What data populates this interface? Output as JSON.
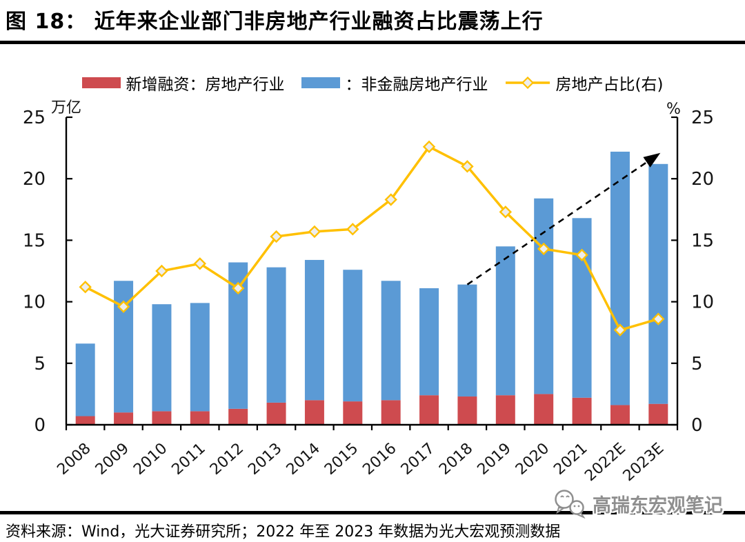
{
  "title": "图 18：  近年来企业部门非房地产行业融资占比震荡上行",
  "legend": [
    {
      "label": "新增融资：房地产行业",
      "type": "bar",
      "color": "#CE4B4F"
    },
    {
      "label": "：非金融房地产行业",
      "type": "bar",
      "color": "#5B9AD5"
    },
    {
      "label": "房地产占比(右)",
      "type": "line",
      "color": "#FFC000",
      "marker_fill": "#EDEDED"
    }
  ],
  "axes": {
    "left_unit": "万亿",
    "right_unit": "%"
  },
  "source_note": "资料来源：Wind，光大证券研究所；2022 年至 2023 年数据为光大宏观预测数据",
  "watermark_text": "高瑞东宏观笔记",
  "chart_data": {
    "type": "bar",
    "subtype": "stacked-bars-with-line",
    "title": "图 18：近年来企业部门非房地产行业融资占比震荡上行",
    "categories": [
      "2008",
      "2009",
      "2010",
      "2011",
      "2012",
      "2013",
      "2014",
      "2015",
      "2016",
      "2017",
      "2018",
      "2019",
      "2020",
      "2021",
      "2022E",
      "2023E"
    ],
    "series": [
      {
        "name": "新增融资：房地产行业",
        "type": "bar",
        "stacked": true,
        "axis": "left",
        "color": "#CE4B4F",
        "values": [
          0.7,
          1.0,
          1.1,
          1.1,
          1.3,
          1.8,
          2.0,
          1.9,
          2.0,
          2.4,
          2.3,
          2.4,
          2.5,
          2.2,
          1.6,
          1.7
        ]
      },
      {
        "name": "：非金融房地产行业",
        "type": "bar",
        "stacked": true,
        "axis": "left",
        "color": "#5B9AD5",
        "values": [
          5.9,
          10.7,
          8.7,
          8.8,
          11.9,
          11.0,
          11.4,
          10.7,
          9.7,
          8.7,
          9.1,
          12.1,
          15.9,
          14.6,
          20.6,
          19.5
        ]
      },
      {
        "name": "房地产占比(右)",
        "type": "line",
        "axis": "right",
        "color": "#FFC000",
        "marker": "diamond",
        "marker_fill": "#EDEDED",
        "values": [
          11.2,
          9.6,
          12.5,
          13.1,
          11.1,
          15.3,
          15.7,
          15.9,
          18.3,
          22.6,
          21.0,
          17.3,
          14.3,
          13.8,
          7.7,
          8.6
        ]
      }
    ],
    "left_ylabel": "万亿",
    "right_ylabel": "%",
    "left_ylim": [
      0,
      25
    ],
    "right_ylim": [
      0,
      25
    ],
    "yticks": [
      0,
      5,
      10,
      15,
      20,
      25
    ],
    "grid": false,
    "legend_position": "top",
    "annotation_arrow": {
      "style": "dashed-black",
      "from_index": 10,
      "from_value": 11.4,
      "to_index": 15,
      "to_value": 22.1
    }
  }
}
